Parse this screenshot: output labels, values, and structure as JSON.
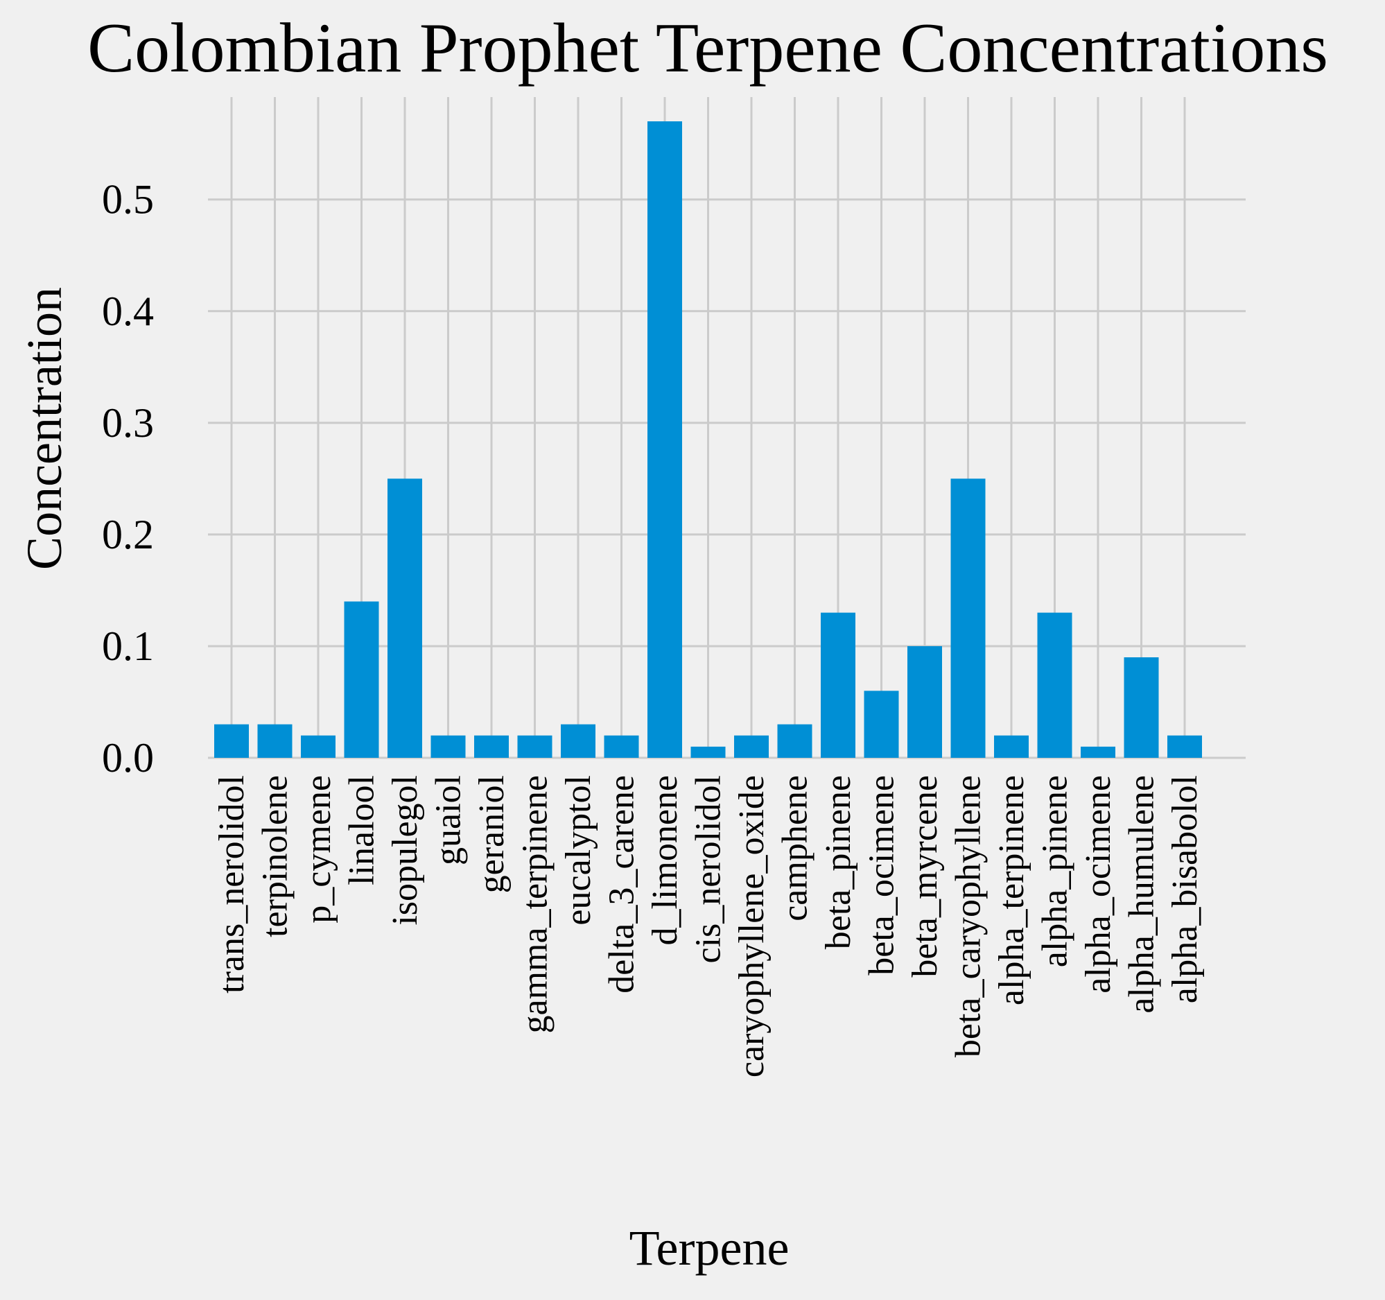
{
  "chart_data": {
    "type": "bar",
    "title": "Colombian Prophet Terpene Concentrations",
    "xlabel": "Terpene",
    "ylabel": "Concentration",
    "ylim": [
      0,
      0.57
    ],
    "yticks": [
      "0.0",
      "0.1",
      "0.2",
      "0.3",
      "0.4",
      "0.5"
    ],
    "grid": true,
    "bar_color": "#008fd5",
    "background_color": "#f0f0f0",
    "grid_color": "#cbcbcb",
    "categories": [
      "trans_nerolidol",
      "terpinolene",
      "p_cymene",
      "linalool",
      "isopulegol",
      "guaiol",
      "geraniol",
      "gamma_terpinene",
      "eucalyptol",
      "delta_3_carene",
      "d_limonene",
      "cis_nerolidol",
      "caryophyllene_oxide",
      "camphene",
      "beta_pinene",
      "beta_ocimene",
      "beta_myrcene",
      "beta_caryophyllene",
      "alpha_terpinene",
      "alpha_pinene",
      "alpha_ocimene",
      "alpha_humulene",
      "alpha_bisabolol"
    ],
    "values": [
      0.03,
      0.03,
      0.02,
      0.14,
      0.25,
      0.02,
      0.02,
      0.02,
      0.03,
      0.02,
      0.57,
      0.01,
      0.02,
      0.03,
      0.13,
      0.06,
      0.1,
      0.25,
      0.02,
      0.13,
      0.01,
      0.09,
      0.02
    ]
  }
}
